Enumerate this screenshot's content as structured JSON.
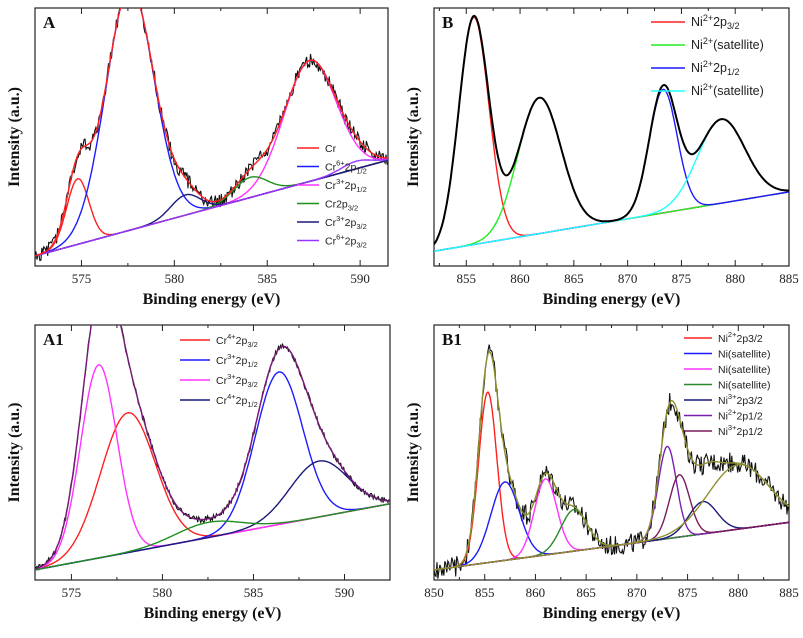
{
  "colors": {
    "black": "#000000",
    "red": "#ff2020",
    "blue": "#1c1cff",
    "magenta": "#ff33ff",
    "green": "#1f8f1f",
    "navy": "#1a1a7a",
    "purple": "#9a33ff",
    "cyan": "#22ffff",
    "lime": "#22ee22",
    "brightmagenta": "#ff22ff",
    "darkred": "#7a1010",
    "darkgreen": "#2a8a2a",
    "nvpurple": "#7a1fb0",
    "plum": "#7a1a5a",
    "olive": "#8f8f2f"
  },
  "chart_data": [
    {
      "id": "A",
      "type": "line",
      "label": "A",
      "xlabel": "Binding energy (eV)",
      "ylabel": "Intensity (a.u.)",
      "xlim": [
        572.5,
        591.5
      ],
      "xticks": [
        575,
        580,
        585,
        590
      ],
      "noise": 0.03,
      "envelopeColor": "#ff2020",
      "baseline": {
        "x": [
          573,
          591.5
        ],
        "y": [
          0.05,
          0.42
        ],
        "color": "#8a1a8a"
      },
      "components": [
        {
          "name": "Cr",
          "color": "#ff2020",
          "center": 574.8,
          "amp": 0.26,
          "width": 0.6
        },
        {
          "name": "Cr6+2p1/2",
          "color": "#1c1cff",
          "center": 577.6,
          "amp": 0.96,
          "width": 1.3
        },
        {
          "name": "Cr3+2p1/2",
          "color": "#ff33ff",
          "center": 587.3,
          "amp": 0.48,
          "width": 1.4
        },
        {
          "name": "Cr2p3/2",
          "color": "#1f8f1f",
          "center": 584.1,
          "amp": 0.08,
          "width": 0.9
        },
        {
          "name": "Cr3+2p3/2",
          "color": "#1a1a7a",
          "center": 580.6,
          "amp": 0.08,
          "width": 0.8
        },
        {
          "name": "Cr6+2p3/2",
          "color": "#9a33ff",
          "center": 589.8,
          "amp": 0.03,
          "width": 0.8
        }
      ],
      "legend": [
        {
          "base": "Cr",
          "sup": "",
          "sub": ""
        },
        {
          "base": "Cr",
          "sup": "6+",
          "sub": "2p",
          "sub2": "1/2"
        },
        {
          "base": "Cr",
          "sup": "3+",
          "sub": "2p",
          "sub2": "1/2"
        },
        {
          "base": "Cr2p",
          "sup": "",
          "sub": "",
          "sub2": "3/2"
        },
        {
          "base": "Cr",
          "sup": "3+",
          "sub": "2p",
          "sub2": "3/2"
        },
        {
          "base": "Cr",
          "sup": "6+",
          "sub": "2p",
          "sub2": "3/2"
        }
      ]
    },
    {
      "id": "B",
      "type": "line",
      "label": "B",
      "xlabel": "Binding energy (eV)",
      "ylabel": "Intensity (a.u.)",
      "xlim": [
        852,
        885
      ],
      "xticks": [
        855,
        860,
        865,
        870,
        875,
        880,
        885
      ],
      "noise": 0,
      "envelopeColor": "#000000",
      "baseline": {
        "x": [
          852,
          885
        ],
        "y": [
          0.06,
          0.3
        ],
        "color": "#ff22ff"
      },
      "components": [
        {
          "name": "Ni2+2p3/2",
          "color": "#ff2020",
          "center": 855.7,
          "amp": 0.92,
          "width": 1.4
        },
        {
          "name": "Ni2+(satellite)",
          "color": "#22ee22",
          "center": 861.8,
          "amp": 0.55,
          "width": 2.0
        },
        {
          "name": "Ni2+2p1/2",
          "color": "#1c1cff",
          "center": 873.3,
          "amp": 0.5,
          "width": 1.3
        },
        {
          "name": "Ni2+(satellite)",
          "color": "#22ffff",
          "center": 878.7,
          "amp": 0.34,
          "width": 2.2
        }
      ],
      "legend": [
        {
          "base": "Ni",
          "sup": "2+",
          "sub": "2p",
          "sub2": "3/2"
        },
        {
          "base": "Ni",
          "sup": "2+",
          "sub": "(satellite)",
          "sub2": ""
        },
        {
          "base": "Ni",
          "sup": "2+",
          "sub": "2p",
          "sub2": "1/2"
        },
        {
          "base": "Ni",
          "sup": "2+",
          "sub": "(satellite)",
          "sub2": ""
        }
      ]
    },
    {
      "id": "A1",
      "type": "line",
      "label": "A1",
      "xlabel": "Binding energy (eV)",
      "ylabel": "Intensity (a.u.)",
      "xlim": [
        573,
        592.5
      ],
      "xticks": [
        575,
        580,
        585,
        590
      ],
      "noise": 0.012,
      "envelopeColor": "#7a1a7a",
      "baseline": {
        "x": [
          573,
          592.5
        ],
        "y": [
          0.04,
          0.3
        ],
        "color": "#9a33ff"
      },
      "components": [
        {
          "name": "Cr4+2p3/2",
          "color": "#ff2020",
          "center": 578.1,
          "amp": 0.55,
          "width": 1.5
        },
        {
          "name": "Cr3+2p1/2",
          "color": "#1c1cff",
          "center": 586.4,
          "amp": 0.6,
          "width": 1.3
        },
        {
          "name": "Cr3+2p3/2",
          "color": "#ff33ff",
          "center": 576.5,
          "amp": 0.76,
          "width": 1.0
        },
        {
          "name": "Cr4+2p1/2",
          "color": "#1a1a7a",
          "center": 588.6,
          "amp": 0.22,
          "width": 1.6
        },
        {
          "name": "green",
          "color": "#1f8f1f",
          "center": 582.5,
          "amp": 0.06,
          "width": 1.8
        }
      ],
      "legend": [
        {
          "base": "Cr",
          "sup": "4+",
          "sub": "2p",
          "sub2": "3/2"
        },
        {
          "base": "Cr",
          "sup": "3+",
          "sub": "2p",
          "sub2": "1/2"
        },
        {
          "base": "Cr",
          "sup": "3+",
          "sub": "2p",
          "sub2": "3/2"
        },
        {
          "base": "Cr",
          "sup": "4+",
          "sub": "2p",
          "sub2": "1/2"
        }
      ]
    },
    {
      "id": "B1",
      "type": "line",
      "label": "B1",
      "xlabel": "Binding energy (eV)",
      "ylabel": "Intensity (a.u.)",
      "xlim": [
        850,
        885
      ],
      "xticks": [
        850,
        855,
        860,
        865,
        870,
        875,
        880,
        885
      ],
      "noise": 0.045,
      "envelopeColor": "#8f8f2f",
      "baseline": {
        "x": [
          851,
          885
        ],
        "y": [
          0.05,
          0.25
        ],
        "color": "#7a1010"
      },
      "components": [
        {
          "name": "Ni2+2p3/2",
          "color": "#ff2020",
          "center": 855.3,
          "amp": 0.74,
          "width": 0.9
        },
        {
          "name": "Ni(satellite)",
          "color": "#1c1cff",
          "center": 857.0,
          "amp": 0.34,
          "width": 1.4
        },
        {
          "name": "Ni(satellite)",
          "color": "#ff33ff",
          "center": 861.0,
          "amp": 0.33,
          "width": 1.1
        },
        {
          "name": "Ni(satellite)",
          "color": "#2a8a2a",
          "center": 863.8,
          "amp": 0.18,
          "width": 1.3
        },
        {
          "name": "Ni3+2p3/2",
          "color": "#1a1a7a",
          "center": 876.5,
          "amp": 0.14,
          "width": 1.4
        },
        {
          "name": "Ni2+2p1/2",
          "color": "#7a1fb0",
          "center": 873.0,
          "amp": 0.4,
          "width": 0.9
        },
        {
          "name": "Ni3+2p1/2",
          "color": "#7a1a5a",
          "center": 874.2,
          "amp": 0.27,
          "width": 1.0
        },
        {
          "name": "broad",
          "color": "#8f8f2f",
          "center": 880.0,
          "amp": 0.28,
          "width": 3.0
        }
      ],
      "legend": [
        {
          "base": "Ni",
          "sup": "2+",
          "sub": "2p3/2",
          "sub2": ""
        },
        {
          "base": "Ni(satellite)",
          "sup": "",
          "sub": "",
          "sub2": ""
        },
        {
          "base": "Ni(satellite)",
          "sup": "",
          "sub": "",
          "sub2": ""
        },
        {
          "base": "Ni(satellite)",
          "sup": "",
          "sub": "",
          "sub2": ""
        },
        {
          "base": "Ni",
          "sup": "3+",
          "sub": "2p3/2",
          "sub2": ""
        },
        {
          "base": "Ni",
          "sup": "2+",
          "sub": "2p1/2",
          "sub2": ""
        },
        {
          "base": "Ni",
          "sup": "3+",
          "sub": "2p1/2",
          "sub2": ""
        }
      ]
    }
  ]
}
